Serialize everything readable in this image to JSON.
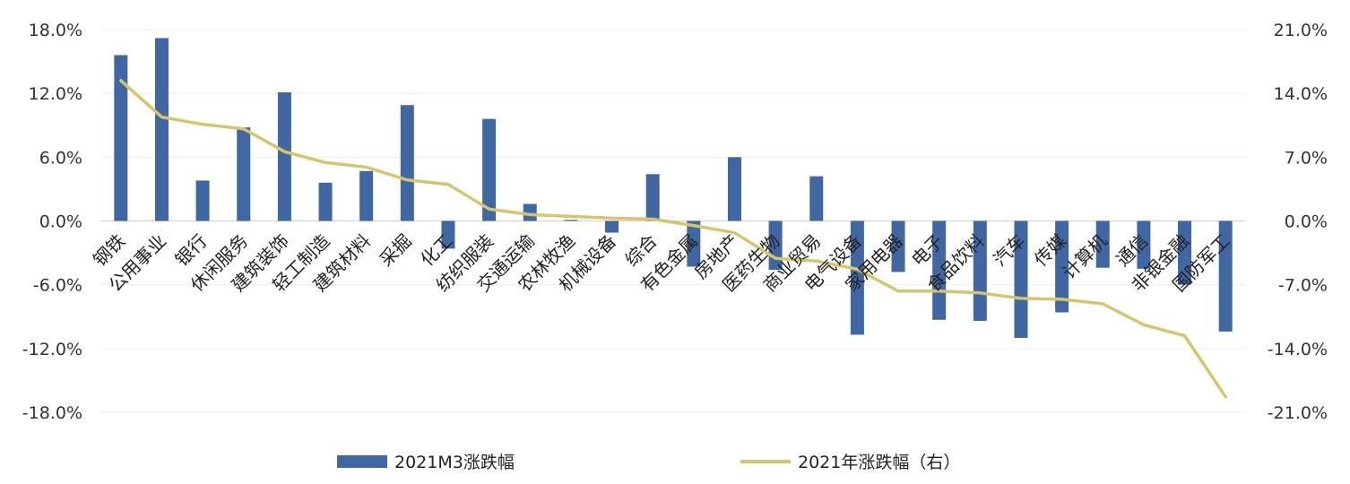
{
  "chart_data": {
    "type": "bar",
    "title": "",
    "categories": [
      "钢铁",
      "公用事业",
      "银行",
      "休闲服务",
      "建筑装饰",
      "轻工制造",
      "建筑材料",
      "采掘",
      "化工",
      "纺织服装",
      "交通运输",
      "农林牧渔",
      "机械设备",
      "综合",
      "有色金属",
      "房地产",
      "医药生物",
      "商业贸易",
      "电气设备",
      "家用电器",
      "电子",
      "食品饮料",
      "汽车",
      "传媒",
      "计算机",
      "通信",
      "非银金融",
      "国防军工"
    ],
    "series": [
      {
        "name": "2021M3涨跌幅",
        "type": "bar",
        "axis": "left",
        "color": "#4167a2",
        "values": [
          15.6,
          17.2,
          3.8,
          8.8,
          12.1,
          3.6,
          4.7,
          10.9,
          -2.6,
          9.6,
          1.6,
          0.1,
          -1.1,
          4.4,
          -4.3,
          6.0,
          -4.6,
          4.2,
          -10.7,
          -4.8,
          -9.3,
          -9.4,
          -11.0,
          -8.6,
          -4.4,
          -4.5,
          -6.0,
          -10.4
        ]
      },
      {
        "name": "2021年涨跌幅（右）",
        "type": "line",
        "axis": "right",
        "color": "#d8c46a",
        "values": [
          15.4,
          11.4,
          10.6,
          10.1,
          7.6,
          6.4,
          5.9,
          4.5,
          4.0,
          1.3,
          0.7,
          0.5,
          0.3,
          0.2,
          -0.5,
          -1.3,
          -4.1,
          -4.4,
          -5.3,
          -7.7,
          -7.7,
          -7.9,
          -8.5,
          -8.6,
          -9.1,
          -11.4,
          -12.6,
          -19.3
        ]
      }
    ],
    "y_left": {
      "ylim": [
        -18,
        18
      ],
      "ticks": [
        18,
        12,
        6,
        0,
        -6,
        -12,
        -18
      ],
      "tick_labels": [
        "18.0%",
        "12.0%",
        "6.0%",
        "0.0%",
        "-6.0%",
        "-12.0%",
        "-18.0%"
      ]
    },
    "y_right": {
      "ylim": [
        -21,
        21
      ],
      "ticks": [
        21,
        14,
        7,
        0,
        -7,
        -14,
        -21
      ],
      "tick_labels": [
        "21.0%",
        "14.0%",
        "7.0%",
        "0.0%",
        "-7.0%",
        "-14.0%",
        "-21.0%"
      ]
    },
    "grid": true,
    "legend": {
      "placement": "bottom",
      "entries": [
        "2021M3涨跌幅",
        "2021年涨跌幅（右）"
      ]
    }
  }
}
